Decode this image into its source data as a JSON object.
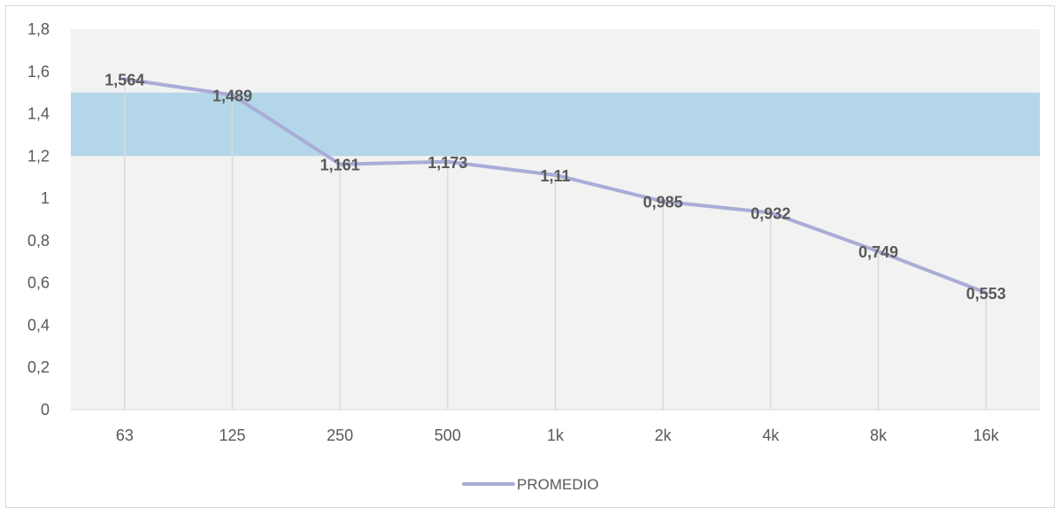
{
  "chart_data": {
    "type": "line",
    "title": "",
    "xlabel": "",
    "ylabel": "",
    "categories": [
      "63",
      "125",
      "250",
      "500",
      "1k",
      "2k",
      "4k",
      "8k",
      "16k"
    ],
    "series": [
      {
        "name": "PROMEDIO",
        "values": [
          1.564,
          1.489,
          1.161,
          1.173,
          1.11,
          0.985,
          0.932,
          0.749,
          0.553
        ],
        "labels": [
          "1,564",
          "1,489",
          "1,161",
          "1,173",
          "1,11",
          "0,985",
          "0,932",
          "0,749",
          "0,553"
        ],
        "color": "#a9acd6"
      }
    ],
    "ylim": [
      0,
      1.8
    ],
    "yticks": [
      {
        "value": 0,
        "label": "0"
      },
      {
        "value": 0.2,
        "label": "0,2"
      },
      {
        "value": 0.4,
        "label": "0,4"
      },
      {
        "value": 0.6,
        "label": "0,6"
      },
      {
        "value": 0.8,
        "label": "0,8"
      },
      {
        "value": 1,
        "label": "1"
      },
      {
        "value": 1.2,
        "label": "1,2"
      },
      {
        "value": 1.4,
        "label": "1,4"
      },
      {
        "value": 1.6,
        "label": "1,6"
      },
      {
        "value": 1.8,
        "label": "1,8"
      }
    ],
    "reference_band": {
      "from": 1.2,
      "to": 1.5,
      "color": "#b4d6e9"
    },
    "plot_background": "#f2f2f2",
    "vertical_gridlines": true,
    "legend_position": "bottom"
  }
}
